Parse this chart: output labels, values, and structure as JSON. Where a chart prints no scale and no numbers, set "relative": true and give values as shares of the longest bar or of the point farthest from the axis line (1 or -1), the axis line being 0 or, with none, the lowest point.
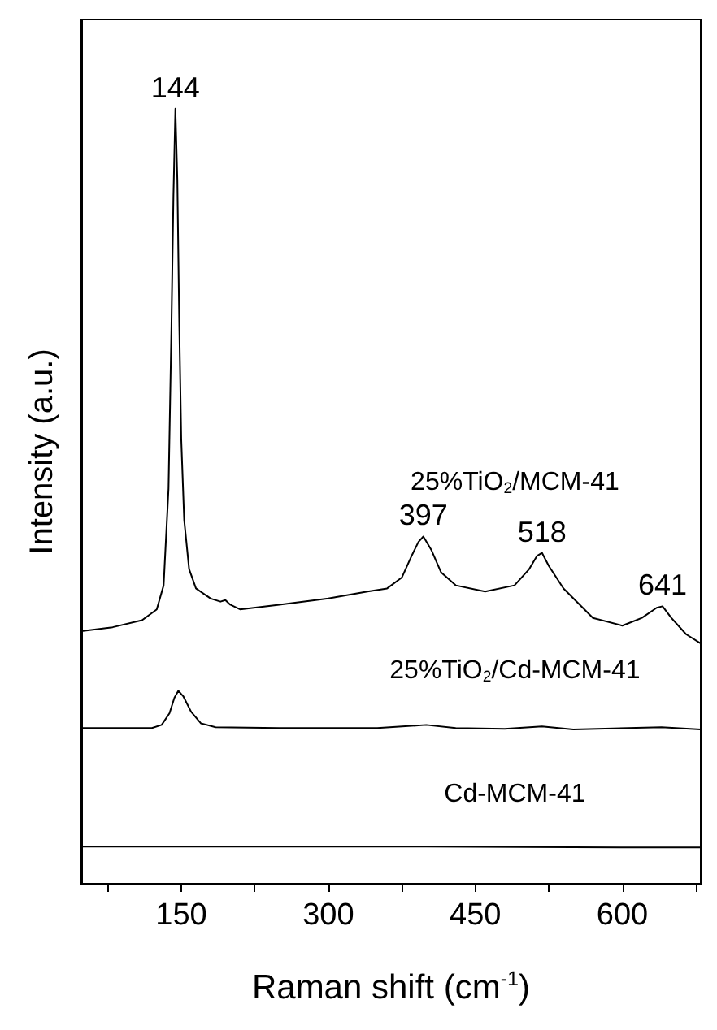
{
  "chart_data": {
    "type": "line",
    "xlabel": "Raman shift (cm$^{-1}$)",
    "ylabel": "Intensity (a.u.)",
    "relative": true,
    "xlim": [
      48,
      680
    ],
    "xticks": [
      {
        "value": 75,
        "label": null
      },
      150,
      {
        "value": 225,
        "label": null
      },
      300,
      {
        "value": 375,
        "label": null
      },
      450,
      {
        "value": 525,
        "label": null
      },
      600,
      {
        "value": 675,
        "label": null
      }
    ],
    "tick_labels": "x",
    "grid": false,
    "legend": false,
    "marker": "none",
    "line_style": "solid",
    "series": [
      {
        "name": "25%TiO$_{2}$/MCM-41",
        "color": "#000000",
        "x": [
          48,
          80,
          110,
          125,
          132,
          137,
          140,
          142,
          144,
          146,
          148,
          150,
          153,
          158,
          165,
          180,
          190,
          195,
          200,
          210,
          250,
          300,
          340,
          360,
          375,
          385,
          392,
          397,
          405,
          415,
          430,
          460,
          490,
          505,
          513,
          518,
          525,
          540,
          570,
          600,
          620,
          635,
          641,
          650,
          665,
          680
        ],
        "values": [
          0.326,
          0.331,
          0.34,
          0.354,
          0.385,
          0.51,
          0.72,
          0.887,
          1.0,
          0.908,
          0.72,
          0.573,
          0.469,
          0.406,
          0.381,
          0.368,
          0.364,
          0.366,
          0.36,
          0.354,
          0.36,
          0.368,
          0.377,
          0.381,
          0.395,
          0.423,
          0.441,
          0.448,
          0.431,
          0.402,
          0.385,
          0.377,
          0.385,
          0.406,
          0.423,
          0.427,
          0.41,
          0.381,
          0.343,
          0.333,
          0.343,
          0.356,
          0.358,
          0.343,
          0.322,
          0.31
        ]
      },
      {
        "name": "25%TiO$_{2}$/Cd-MCM-41",
        "color": "#000000",
        "x": [
          48,
          120,
          130,
          138,
          143,
          147,
          152,
          160,
          170,
          185,
          250,
          350,
          400,
          430,
          480,
          518,
          550,
          640,
          680
        ],
        "values": [
          0.201,
          0.201,
          0.205,
          0.22,
          0.24,
          0.249,
          0.242,
          0.222,
          0.207,
          0.202,
          0.201,
          0.201,
          0.205,
          0.201,
          0.2,
          0.203,
          0.199,
          0.202,
          0.199
        ]
      },
      {
        "name": "Cd-MCM-41",
        "color": "#000000",
        "x": [
          48,
          200,
          400,
          600,
          680
        ],
        "values": [
          0.048,
          0.048,
          0.048,
          0.047,
          0.047
        ]
      }
    ],
    "annotations": [
      {
        "text": "144",
        "x": 144,
        "y": 1.0
      },
      {
        "text": "397",
        "x": 397,
        "y": 0.448
      },
      {
        "text": "518",
        "x": 518,
        "y": 0.427
      },
      {
        "text": "641",
        "x": 641,
        "y": 0.358
      }
    ]
  }
}
